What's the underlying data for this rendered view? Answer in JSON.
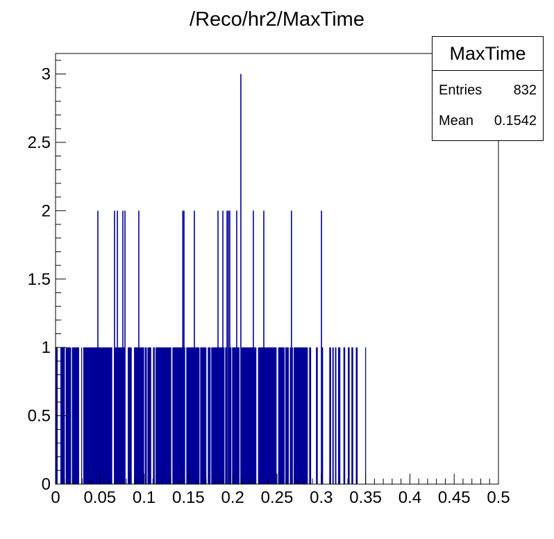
{
  "title": "/Reco/hr2/MaxTime",
  "stats_box": {
    "title": "MaxTime",
    "rows": [
      {
        "label": "Entries",
        "value": "832"
      },
      {
        "label": "Mean",
        "value": "0.1542"
      }
    ]
  },
  "colors": {
    "bar_fill": "#000099",
    "axis": "#000000",
    "background": "#ffffff"
  },
  "chart_data": {
    "type": "bar",
    "subtype": "histogram",
    "title": "/Reco/hr2/MaxTime",
    "xlabel": "",
    "ylabel": "",
    "xlim": [
      0,
      0.5
    ],
    "ylim": [
      0,
      3.15
    ],
    "grid": false,
    "legend_position": "none",
    "x_tick_labels": [
      "0",
      "0.05",
      "0.1",
      "0.15",
      "0.2",
      "0.25",
      "0.3",
      "0.35",
      "0.4",
      "0.45",
      "0.5"
    ],
    "y_tick_labels": [
      "0",
      "0.5",
      "1",
      "1.5",
      "2",
      "2.5",
      "3"
    ],
    "x_minor_step": 0.01,
    "y_minor_step": 0.1,
    "entries": 832,
    "mean": 0.1542,
    "bar_color": "#000099",
    "height1_segments": [
      [
        0.0,
        0.0024
      ],
      [
        0.0055,
        0.0105
      ],
      [
        0.0115,
        0.0175
      ],
      [
        0.0185,
        0.0266
      ],
      [
        0.029,
        0.03
      ],
      [
        0.0313,
        0.064
      ],
      [
        0.066,
        0.078
      ],
      [
        0.0815,
        0.086
      ],
      [
        0.0886,
        0.1
      ],
      [
        0.1008,
        0.103
      ],
      [
        0.1038,
        0.108
      ],
      [
        0.11,
        0.112
      ],
      [
        0.1128,
        0.1306
      ],
      [
        0.1319,
        0.1463
      ],
      [
        0.1476,
        0.1625
      ],
      [
        0.1633,
        0.1703
      ],
      [
        0.1719,
        0.175
      ],
      [
        0.1758,
        0.1907
      ],
      [
        0.1915,
        0.1941
      ],
      [
        0.1949,
        0.1985
      ],
      [
        0.1993,
        0.2077
      ],
      [
        0.2093,
        0.2267
      ],
      [
        0.2286,
        0.2495
      ],
      [
        0.2513,
        0.2586
      ],
      [
        0.2594,
        0.2633
      ],
      [
        0.2645,
        0.2658
      ],
      [
        0.267,
        0.268
      ],
      [
        0.2688,
        0.2848
      ],
      [
        0.2863,
        0.2885
      ],
      [
        0.294,
        0.296
      ],
      [
        0.3,
        0.302
      ],
      [
        0.309,
        0.311
      ],
      [
        0.3125,
        0.314
      ],
      [
        0.3155,
        0.317
      ],
      [
        0.319,
        0.3215
      ],
      [
        0.325,
        0.327
      ],
      [
        0.33,
        0.332
      ],
      [
        0.334,
        0.336
      ],
      [
        0.339,
        0.341
      ],
      [
        0.3495,
        0.3505
      ]
    ],
    "height2_bars": [
      0.0478,
      0.0666,
      0.0698,
      0.076,
      0.0784,
      0.094,
      0.1437,
      0.145,
      0.1567,
      0.1834,
      0.1889,
      0.1936,
      0.1951,
      0.1967,
      0.2045,
      0.2233,
      0.2351,
      0.2663,
      0.3002
    ],
    "height3_bars": [
      0.2092
    ]
  }
}
